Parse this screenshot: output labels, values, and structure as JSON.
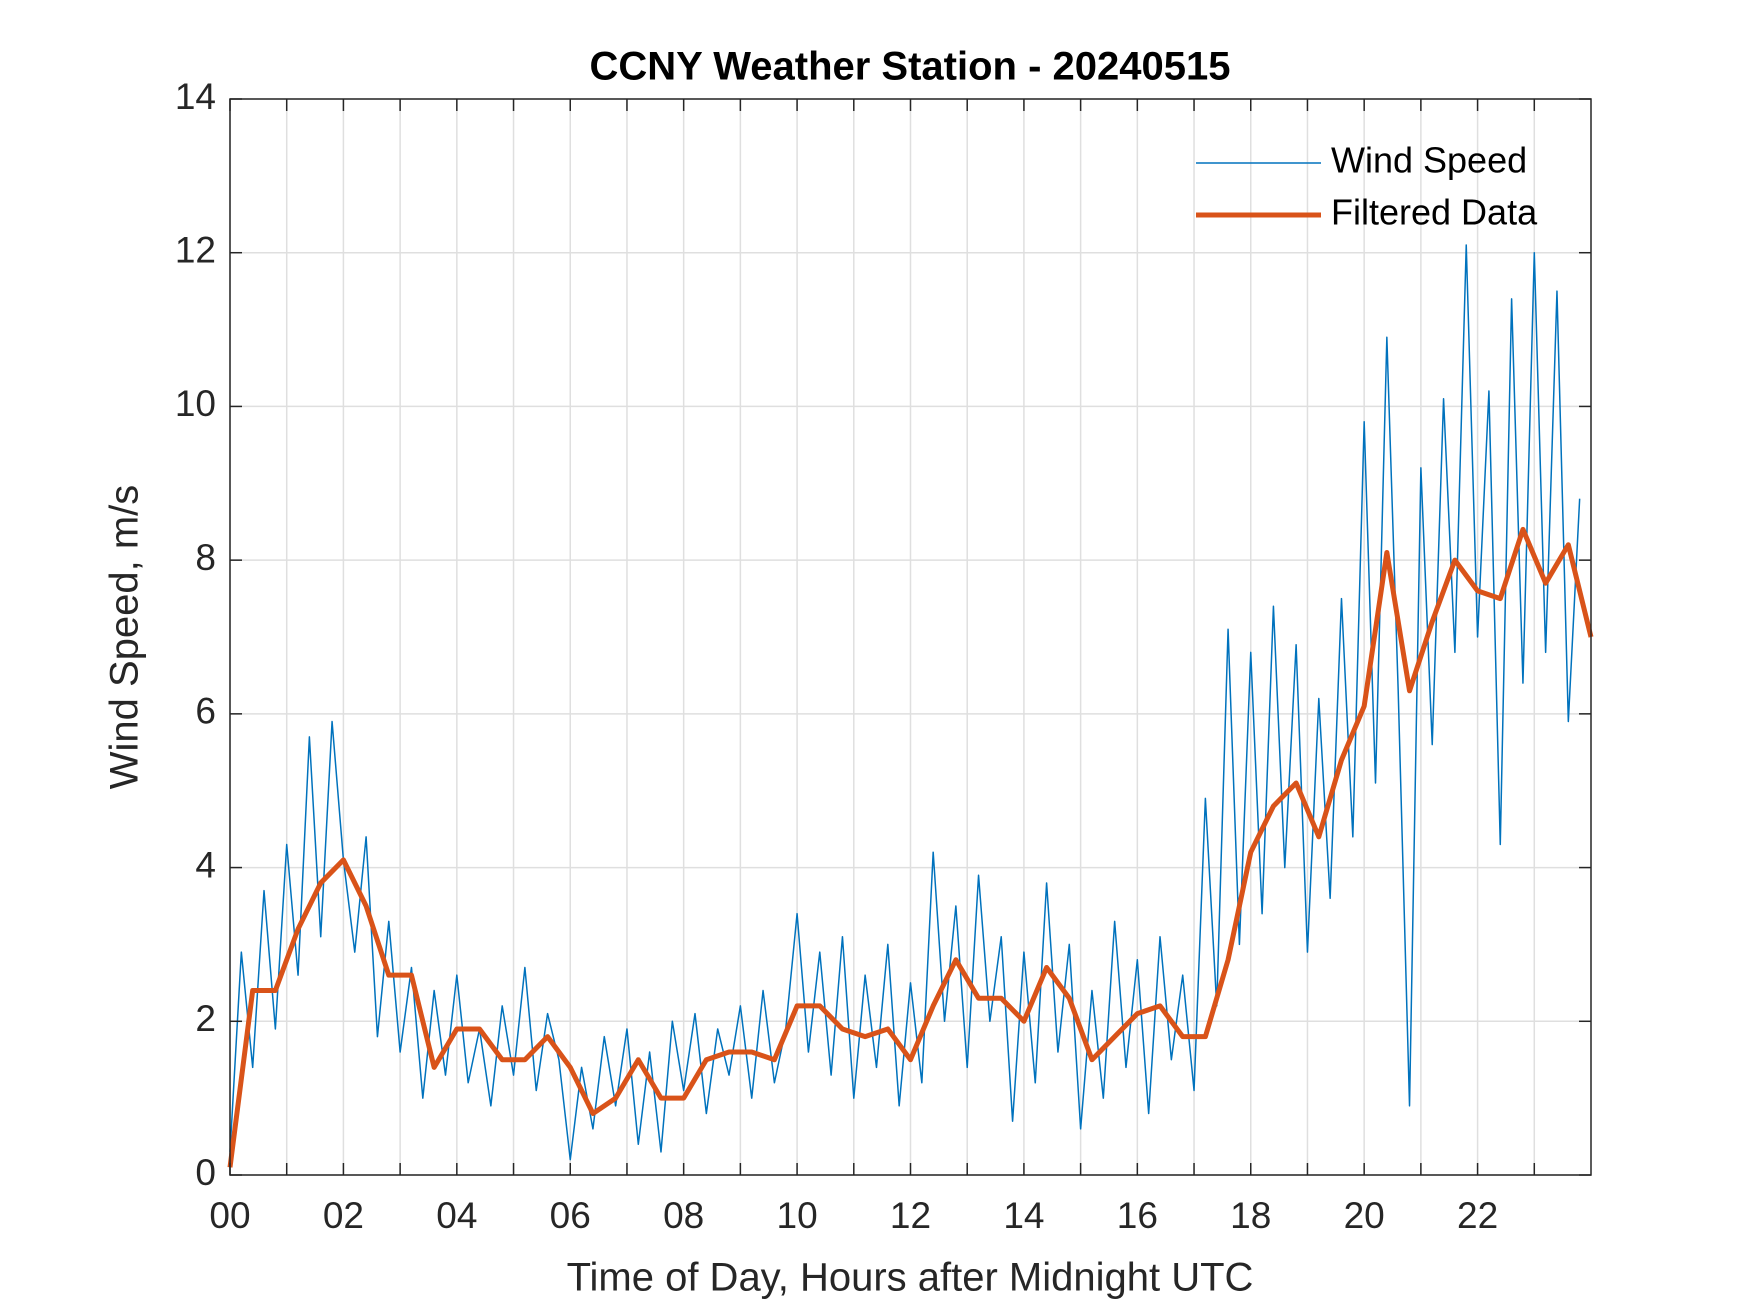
{
  "chart_data": {
    "type": "line",
    "title": "CCNY Weather Station - 20240515",
    "xlabel": "Time of Day, Hours after Midnight UTC",
    "ylabel": "Wind Speed, m/s",
    "xlim": [
      0,
      24
    ],
    "ylim": [
      0,
      14
    ],
    "xticks": [
      {
        "value": 0,
        "label": "00"
      },
      {
        "value": 2,
        "label": "02"
      },
      {
        "value": 4,
        "label": "04"
      },
      {
        "value": 6,
        "label": "06"
      },
      {
        "value": 8,
        "label": "08"
      },
      {
        "value": 10,
        "label": "10"
      },
      {
        "value": 12,
        "label": "12"
      },
      {
        "value": 14,
        "label": "14"
      },
      {
        "value": 16,
        "label": "16"
      },
      {
        "value": 18,
        "label": "18"
      },
      {
        "value": 20,
        "label": "20"
      },
      {
        "value": 22,
        "label": "22"
      }
    ],
    "xminorticks": [
      1,
      3,
      5,
      7,
      9,
      11,
      13,
      15,
      17,
      19,
      21,
      23
    ],
    "yticks": [
      0,
      2,
      4,
      6,
      8,
      10,
      12,
      14
    ],
    "grid": true,
    "legend": "upper right",
    "series": [
      {
        "name": "Wind Speed",
        "color": "#0072bd",
        "width": 1.5,
        "x": [
          0,
          0.2,
          0.4,
          0.6,
          0.8,
          1,
          1.2,
          1.4,
          1.6,
          1.8,
          2,
          2.2,
          2.4,
          2.6,
          2.8,
          3,
          3.2,
          3.4,
          3.6,
          3.8,
          4,
          4.2,
          4.4,
          4.6,
          4.8,
          5,
          5.2,
          5.4,
          5.6,
          5.8,
          6,
          6.2,
          6.4,
          6.6,
          6.8,
          7,
          7.2,
          7.4,
          7.6,
          7.8,
          8,
          8.2,
          8.4,
          8.6,
          8.8,
          9,
          9.2,
          9.4,
          9.6,
          9.8,
          10,
          10.2,
          10.4,
          10.6,
          10.8,
          11,
          11.2,
          11.4,
          11.6,
          11.8,
          12,
          12.2,
          12.4,
          12.6,
          12.8,
          13,
          13.2,
          13.4,
          13.6,
          13.8,
          14,
          14.2,
          14.4,
          14.6,
          14.8,
          15,
          15.2,
          15.4,
          15.6,
          15.8,
          16,
          16.2,
          16.4,
          16.6,
          16.8,
          17,
          17.2,
          17.4,
          17.6,
          17.8,
          18,
          18.2,
          18.4,
          18.6,
          18.8,
          19,
          19.2,
          19.4,
          19.6,
          19.8,
          20,
          20.2,
          20.4,
          20.6,
          20.8,
          21,
          21.2,
          21.4,
          21.6,
          21.8,
          22,
          22.2,
          22.4,
          22.6,
          22.8,
          23,
          23.2,
          23.4,
          23.6,
          23.8
        ],
        "values": [
          0.3,
          2.9,
          1.4,
          3.7,
          1.9,
          4.3,
          2.6,
          5.7,
          3.1,
          5.9,
          4.1,
          2.9,
          4.4,
          1.8,
          3.3,
          1.6,
          2.7,
          1.0,
          2.4,
          1.3,
          2.6,
          1.2,
          1.9,
          0.9,
          2.2,
          1.3,
          2.7,
          1.1,
          2.1,
          1.5,
          0.2,
          1.4,
          0.6,
          1.8,
          0.9,
          1.9,
          0.4,
          1.6,
          0.3,
          2.0,
          1.1,
          2.1,
          0.8,
          1.9,
          1.3,
          2.2,
          1.0,
          2.4,
          1.2,
          1.9,
          3.4,
          1.6,
          2.9,
          1.3,
          3.1,
          1.0,
          2.6,
          1.4,
          3.0,
          0.9,
          2.5,
          1.2,
          4.2,
          2.0,
          3.5,
          1.4,
          3.9,
          2.0,
          3.1,
          0.7,
          2.9,
          1.2,
          3.8,
          1.6,
          3.0,
          0.6,
          2.4,
          1.0,
          3.3,
          1.4,
          2.8,
          0.8,
          3.1,
          1.5,
          2.6,
          1.1,
          4.9,
          2.2,
          7.1,
          3.0,
          6.8,
          3.4,
          7.4,
          4.0,
          6.9,
          2.9,
          6.2,
          3.6,
          7.5,
          4.4,
          9.8,
          5.1,
          10.9,
          6.3,
          0.9,
          9.2,
          5.6,
          10.1,
          6.8,
          12.1,
          7.0,
          10.2,
          4.3,
          11.4,
          6.4,
          12.0,
          6.8,
          11.5,
          5.9,
          8.8
        ]
      },
      {
        "name": "Filtered Data",
        "color": "#d95319",
        "width": 5,
        "x": [
          0,
          0.4,
          0.8,
          1.2,
          1.6,
          2,
          2.4,
          2.8,
          3.2,
          3.6,
          4,
          4.4,
          4.8,
          5.2,
          5.6,
          6,
          6.4,
          6.8,
          7.2,
          7.6,
          8,
          8.4,
          8.8,
          9.2,
          9.6,
          10,
          10.4,
          10.8,
          11.2,
          11.6,
          12,
          12.4,
          12.8,
          13.2,
          13.6,
          14,
          14.4,
          14.8,
          15.2,
          15.6,
          16,
          16.4,
          16.8,
          17.2,
          17.6,
          18,
          18.4,
          18.8,
          19.2,
          19.6,
          20,
          20.4,
          20.8,
          21.2,
          21.6,
          22,
          22.4,
          22.8,
          23.2,
          23.6,
          24
        ],
        "values": [
          0.1,
          2.4,
          2.4,
          3.2,
          3.8,
          4.1,
          3.5,
          2.6,
          2.6,
          1.4,
          1.9,
          1.9,
          1.5,
          1.5,
          1.8,
          1.4,
          0.8,
          1.0,
          1.5,
          1.0,
          1.0,
          1.5,
          1.6,
          1.6,
          1.5,
          2.2,
          2.2,
          1.9,
          1.8,
          1.9,
          1.5,
          2.2,
          2.8,
          2.3,
          2.3,
          2.0,
          2.7,
          2.3,
          1.5,
          1.8,
          2.1,
          2.2,
          1.8,
          1.8,
          2.8,
          4.2,
          4.8,
          5.1,
          4.4,
          5.4,
          6.1,
          8.1,
          6.3,
          7.2,
          8.0,
          7.6,
          7.5,
          8.4,
          7.7,
          8.2,
          7.0
        ]
      }
    ]
  }
}
